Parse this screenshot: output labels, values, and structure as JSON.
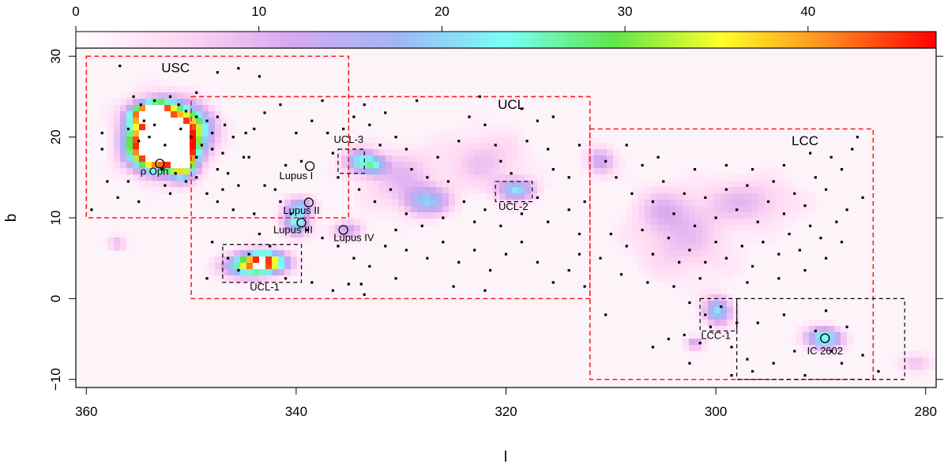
{
  "chart_data": {
    "type": "heatmap",
    "xlabel": "l",
    "ylabel": "b",
    "xlim": [
      361,
      279
    ],
    "ylim": [
      -11,
      31
    ],
    "xticks": [
      360,
      340,
      320,
      300,
      280
    ],
    "yticks": [
      -10,
      0,
      10,
      20,
      30
    ],
    "x_reversed": true,
    "grid": false,
    "colorbar": {
      "range": [
        0,
        47
      ],
      "ticks": [
        0,
        10,
        20,
        30,
        40
      ],
      "position": "top",
      "colormap": [
        "#ffffff",
        "#ffd6f3",
        "#d8a8f0",
        "#9fb6f6",
        "#78fff8",
        "#5ee64a",
        "#ffff2a",
        "#ff8a1e",
        "#ff0000"
      ]
    },
    "regions": [
      {
        "name": "USC",
        "l": [
          335,
          360
        ],
        "b": [
          10,
          30
        ],
        "style": "red-dashed",
        "label_at": [
          351.5,
          28
        ]
      },
      {
        "name": "UCL",
        "l": [
          312,
          350
        ],
        "b": [
          0,
          25
        ],
        "style": "red-dashed",
        "label_at": [
          319.5,
          23.5
        ]
      },
      {
        "name": "LCC",
        "l": [
          285,
          312
        ],
        "b": [
          -10,
          21
        ],
        "style": "red-dashed",
        "label_at": [
          291.5,
          19
        ]
      },
      {
        "name": "UCL-3",
        "l": [
          333.5,
          336
        ],
        "b": [
          15.5,
          18.5
        ],
        "style": "black-dashed",
        "label_at": [
          335,
          19.3
        ]
      },
      {
        "name": "UCL-2",
        "l": [
          317.5,
          321
        ],
        "b": [
          12,
          14.5
        ],
        "style": "black-dashed",
        "label_at": [
          319.3,
          11
        ]
      },
      {
        "name": "UCL-1",
        "l": [
          339.5,
          347
        ],
        "b": [
          2,
          6.7
        ],
        "style": "black-dashed",
        "label_at": [
          343,
          1
        ]
      },
      {
        "name": "LCC-1",
        "l": [
          298,
          301.5
        ],
        "b": [
          -4,
          0
        ],
        "style": "black-dashed",
        "label_at": [
          300,
          -5
        ]
      },
      {
        "name": "",
        "l": [
          282,
          298
        ],
        "b": [
          -10,
          0
        ],
        "style": "black-dashed",
        "label_at": null
      }
    ],
    "labeled_objects": [
      {
        "name": "ρ Oph",
        "l": 353,
        "b": 16.7,
        "label_at": [
          353.5,
          15.3
        ]
      },
      {
        "name": "Lupus I",
        "l": 338.7,
        "b": 16.4,
        "label_at": [
          340,
          14.8
        ]
      },
      {
        "name": "Lupus II",
        "l": 338.8,
        "b": 11.9,
        "label_at": [
          339.5,
          10.5
        ]
      },
      {
        "name": "Lupus III",
        "l": 339.5,
        "b": 9.4,
        "label_at": [
          340.3,
          8.1
        ]
      },
      {
        "name": "Lupus IV",
        "l": 335.5,
        "b": 8.5,
        "label_at": [
          334.5,
          7.1
        ]
      },
      {
        "name": "IC 2602",
        "l": 289.6,
        "b": -4.9,
        "label_at": [
          289.6,
          -6.9
        ]
      }
    ],
    "density_peaks": [
      {
        "l": 353.5,
        "b": 18.2,
        "level": 48,
        "sl": 1.6,
        "sb": 1.6
      },
      {
        "l": 351.5,
        "b": 19.5,
        "level": 30,
        "sl": 1.8,
        "sb": 2.5
      },
      {
        "l": 352.5,
        "b": 21.0,
        "level": 24,
        "sl": 2.2,
        "sb": 2.2
      },
      {
        "l": 354.5,
        "b": 22.8,
        "level": 34,
        "sl": 0.9,
        "sb": 0.8
      },
      {
        "l": 353.0,
        "b": 23.5,
        "level": 26,
        "sl": 1.0,
        "sb": 0.8
      },
      {
        "l": 350.0,
        "b": 21.5,
        "level": 14,
        "sl": 1.5,
        "sb": 1.5
      },
      {
        "l": 350.8,
        "b": 17.5,
        "level": 38,
        "sl": 0.8,
        "sb": 1.6
      },
      {
        "l": 355.0,
        "b": 20.5,
        "level": 14,
        "sl": 1.2,
        "sb": 2.0
      },
      {
        "l": 343.0,
        "b": 4.5,
        "level": 44,
        "sl": 1.4,
        "sb": 0.9
      },
      {
        "l": 345.0,
        "b": 4.0,
        "level": 20,
        "sl": 1.5,
        "sb": 1.0
      },
      {
        "l": 340.0,
        "b": 9.5,
        "level": 22,
        "sl": 0.9,
        "sb": 1.2
      },
      {
        "l": 339.5,
        "b": 11.5,
        "level": 12,
        "sl": 1.0,
        "sb": 0.8
      },
      {
        "l": 334.0,
        "b": 17.0,
        "level": 19,
        "sl": 1.0,
        "sb": 1.0
      },
      {
        "l": 332.5,
        "b": 16.5,
        "level": 15,
        "sl": 0.8,
        "sb": 0.8
      },
      {
        "l": 327.5,
        "b": 12.0,
        "level": 16,
        "sl": 1.5,
        "sb": 1.2
      },
      {
        "l": 319.0,
        "b": 13.5,
        "level": 19,
        "sl": 1.2,
        "sb": 0.9
      },
      {
        "l": 335.0,
        "b": 8.5,
        "level": 12,
        "sl": 1.0,
        "sb": 0.8
      },
      {
        "l": 330.0,
        "b": 15.0,
        "level": 8,
        "sl": 2.5,
        "sb": 2.5
      },
      {
        "l": 322.0,
        "b": 17.0,
        "level": 7,
        "sl": 2.5,
        "sb": 2.5
      },
      {
        "l": 311.0,
        "b": 17.0,
        "level": 12,
        "sl": 1.0,
        "sb": 1.2
      },
      {
        "l": 299.8,
        "b": -1.5,
        "level": 20,
        "sl": 0.9,
        "sb": 1.2
      },
      {
        "l": 289.6,
        "b": -4.9,
        "level": 24,
        "sl": 1.2,
        "sb": 0.9
      },
      {
        "l": 302.0,
        "b": -5.5,
        "level": 12,
        "sl": 0.6,
        "sb": 0.6
      },
      {
        "l": 303.0,
        "b": 7.0,
        "level": 7,
        "sl": 3.0,
        "sb": 3.0
      },
      {
        "l": 297.0,
        "b": 12.0,
        "level": 8,
        "sl": 3.0,
        "sb": 2.0
      },
      {
        "l": 305.0,
        "b": 11.0,
        "level": 7,
        "sl": 2.0,
        "sb": 2.0
      },
      {
        "l": 357.0,
        "b": 6.8,
        "level": 8,
        "sl": 0.6,
        "sb": 0.6
      },
      {
        "l": 281.0,
        "b": -8.0,
        "level": 6,
        "sl": 1.2,
        "sb": 0.8
      }
    ],
    "stars": [
      [
        356.8,
        28.8
      ],
      [
        355.5,
        25.0
      ],
      [
        354.8,
        24.0
      ],
      [
        353.5,
        24.5
      ],
      [
        352.0,
        25.0
      ],
      [
        351.2,
        24.0
      ],
      [
        350.5,
        23.2
      ],
      [
        349.5,
        22.5
      ],
      [
        348.5,
        22.0
      ],
      [
        347.5,
        22.5
      ],
      [
        346.8,
        21.5
      ],
      [
        350.0,
        20.0
      ],
      [
        349.0,
        19.0
      ],
      [
        348.0,
        18.5
      ],
      [
        347.5,
        16.0
      ],
      [
        346.5,
        15.5
      ],
      [
        349.5,
        15.0
      ],
      [
        350.5,
        14.5
      ],
      [
        352.5,
        14.0
      ],
      [
        356.0,
        14.5
      ],
      [
        358.0,
        14.5
      ],
      [
        358.5,
        20.5
      ],
      [
        358.5,
        18.5
      ],
      [
        359.5,
        11.0
      ],
      [
        357.0,
        12.5
      ],
      [
        355.0,
        12.0
      ],
      [
        352.0,
        13.0
      ],
      [
        346.0,
        11.0
      ],
      [
        345.5,
        14.0
      ],
      [
        344.5,
        17.5
      ],
      [
        344.0,
        21.0
      ],
      [
        343.0,
        23.0
      ],
      [
        343.5,
        27.5
      ],
      [
        345.5,
        28.5
      ],
      [
        347.5,
        28.0
      ],
      [
        349.5,
        25.5
      ],
      [
        351.0,
        21.0
      ],
      [
        352.5,
        19.0
      ],
      [
        354.0,
        20.0
      ],
      [
        355.0,
        19.5
      ],
      [
        356.0,
        21.0
      ],
      [
        353.5,
        21.5
      ],
      [
        352.8,
        16.0
      ],
      [
        351.5,
        15.5
      ],
      [
        348.5,
        13.0
      ],
      [
        347.5,
        12.0
      ],
      [
        345.0,
        17.5
      ],
      [
        344.8,
        20.5
      ],
      [
        346.0,
        20.0
      ],
      [
        347.0,
        18.0
      ],
      [
        348.0,
        20.5
      ],
      [
        349.5,
        17.5
      ],
      [
        354.5,
        22.0
      ],
      [
        341.5,
        24.0
      ],
      [
        340.0,
        20.5
      ],
      [
        339.5,
        17.0
      ],
      [
        341.0,
        16.5
      ],
      [
        338.5,
        22.0
      ],
      [
        337.0,
        20.5
      ],
      [
        336.5,
        18.0
      ],
      [
        335.5,
        21.0
      ],
      [
        334.5,
        22.5
      ],
      [
        333.0,
        21.5
      ],
      [
        332.0,
        19.0
      ],
      [
        331.5,
        23.0
      ],
      [
        330.5,
        20.0
      ],
      [
        329.5,
        18.5
      ],
      [
        329.0,
        16.0
      ],
      [
        327.5,
        15.0
      ],
      [
        326.5,
        17.5
      ],
      [
        325.5,
        14.5
      ],
      [
        324.5,
        19.5
      ],
      [
        323.5,
        22.5
      ],
      [
        322.0,
        21.5
      ],
      [
        321.0,
        19.0
      ],
      [
        320.5,
        17.0
      ],
      [
        319.5,
        15.5
      ],
      [
        318.0,
        19.5
      ],
      [
        317.0,
        22.0
      ],
      [
        316.0,
        18.5
      ],
      [
        315.5,
        16.0
      ],
      [
        314.0,
        15.0
      ],
      [
        313.0,
        19.0
      ],
      [
        315.5,
        22.5
      ],
      [
        318.5,
        23.5
      ],
      [
        322.5,
        25.0
      ],
      [
        328.5,
        24.5
      ],
      [
        333.5,
        24.0
      ],
      [
        337.5,
        24.5
      ],
      [
        336.0,
        15.0
      ],
      [
        334.0,
        13.5
      ],
      [
        332.5,
        12.0
      ],
      [
        331.0,
        13.5
      ],
      [
        329.5,
        10.5
      ],
      [
        328.0,
        9.0
      ],
      [
        326.0,
        10.0
      ],
      [
        324.0,
        12.0
      ],
      [
        323.0,
        9.5
      ],
      [
        322.0,
        11.0
      ],
      [
        320.5,
        9.0
      ],
      [
        318.5,
        10.5
      ],
      [
        317.0,
        12.5
      ],
      [
        316.0,
        9.5
      ],
      [
        314.0,
        11.0
      ],
      [
        313.0,
        8.0
      ],
      [
        312.5,
        12.0
      ],
      [
        342.0,
        13.5
      ],
      [
        341.5,
        12.0
      ],
      [
        340.5,
        10.5
      ],
      [
        339.0,
        8.5
      ],
      [
        337.5,
        7.5
      ],
      [
        336.0,
        6.5
      ],
      [
        334.5,
        5.0
      ],
      [
        333.0,
        4.0
      ],
      [
        331.5,
        6.5
      ],
      [
        330.5,
        8.5
      ],
      [
        329.5,
        6.0
      ],
      [
        327.5,
        5.0
      ],
      [
        326.0,
        7.0
      ],
      [
        324.5,
        4.5
      ],
      [
        323.0,
        6.0
      ],
      [
        321.5,
        3.5
      ],
      [
        320.0,
        5.5
      ],
      [
        318.5,
        7.0
      ],
      [
        317.0,
        4.5
      ],
      [
        315.5,
        2.0
      ],
      [
        314.0,
        3.5
      ],
      [
        313.0,
        5.5
      ],
      [
        333.5,
        0.5
      ],
      [
        333.8,
        1.8
      ],
      [
        336.5,
        1.0
      ],
      [
        338.5,
        2.0
      ],
      [
        341.0,
        2.5
      ],
      [
        345.5,
        3.5
      ],
      [
        346.5,
        5.0
      ],
      [
        344.5,
        5.5
      ],
      [
        342.5,
        6.5
      ],
      [
        348.0,
        7.0
      ],
      [
        348.5,
        2.5
      ],
      [
        343.5,
        8.0
      ],
      [
        344.0,
        10.5
      ],
      [
        343.0,
        14.0
      ],
      [
        347.0,
        13.5
      ],
      [
        310.5,
        17.0
      ],
      [
        309.5,
        15.0
      ],
      [
        308.0,
        13.0
      ],
      [
        307.0,
        16.5
      ],
      [
        306.0,
        12.0
      ],
      [
        305.0,
        14.5
      ],
      [
        304.0,
        10.5
      ],
      [
        303.0,
        13.0
      ],
      [
        302.0,
        9.0
      ],
      [
        301.0,
        12.5
      ],
      [
        300.0,
        10.0
      ],
      [
        299.0,
        13.5
      ],
      [
        298.0,
        11.0
      ],
      [
        297.0,
        14.0
      ],
      [
        296.0,
        9.5
      ],
      [
        295.0,
        12.0
      ],
      [
        294.5,
        14.5
      ],
      [
        293.5,
        10.5
      ],
      [
        292.5,
        13.0
      ],
      [
        291.5,
        11.5
      ],
      [
        290.5,
        15.0
      ],
      [
        289.5,
        13.5
      ],
      [
        288.0,
        16.0
      ],
      [
        287.0,
        18.5
      ],
      [
        286.5,
        20.0
      ],
      [
        289.0,
        17.5
      ],
      [
        291.0,
        18.0
      ],
      [
        293.5,
        16.5
      ],
      [
        296.5,
        16.0
      ],
      [
        299.0,
        16.5
      ],
      [
        302.0,
        16.0
      ],
      [
        305.5,
        17.5
      ],
      [
        308.5,
        19.0
      ],
      [
        310.0,
        8.0
      ],
      [
        308.5,
        6.5
      ],
      [
        307.0,
        8.5
      ],
      [
        306.0,
        5.5
      ],
      [
        304.5,
        7.5
      ],
      [
        303.5,
        4.5
      ],
      [
        302.5,
        6.0
      ],
      [
        301.0,
        4.5
      ],
      [
        300.0,
        7.0
      ],
      [
        299.0,
        5.0
      ],
      [
        297.5,
        6.5
      ],
      [
        296.5,
        4.0
      ],
      [
        295.5,
        7.0
      ],
      [
        294.0,
        5.5
      ],
      [
        293.0,
        8.0
      ],
      [
        292.0,
        6.0
      ],
      [
        291.0,
        9.0
      ],
      [
        290.0,
        7.5
      ],
      [
        288.5,
        9.5
      ],
      [
        287.5,
        11.0
      ],
      [
        286.0,
        12.5
      ],
      [
        288.0,
        7.0
      ],
      [
        289.5,
        5.0
      ],
      [
        291.5,
        3.5
      ],
      [
        294.0,
        2.5
      ],
      [
        297.0,
        2.0
      ],
      [
        301.5,
        2.5
      ],
      [
        304.0,
        1.5
      ],
      [
        306.5,
        2.0
      ],
      [
        309.0,
        3.0
      ],
      [
        311.0,
        5.0
      ],
      [
        302.5,
        -0.5
      ],
      [
        301.0,
        -2.0
      ],
      [
        299.5,
        -1.0
      ],
      [
        298.0,
        -3.0
      ],
      [
        300.5,
        -3.5
      ],
      [
        303.0,
        -4.5
      ],
      [
        304.5,
        -5.0
      ],
      [
        301.5,
        -5.5
      ],
      [
        298.5,
        -6.0
      ],
      [
        297.0,
        -7.5
      ],
      [
        296.5,
        -9.0
      ],
      [
        294.5,
        -8.0
      ],
      [
        292.5,
        -6.5
      ],
      [
        291.5,
        -9.5
      ],
      [
        290.5,
        -4.0
      ],
      [
        289.0,
        -6.5
      ],
      [
        288.0,
        -8.0
      ],
      [
        287.5,
        -3.5
      ],
      [
        286.0,
        -7.0
      ],
      [
        284.5,
        -9.0
      ],
      [
        289.5,
        -1.5
      ],
      [
        293.5,
        -2.0
      ],
      [
        296.0,
        -3.0
      ],
      [
        298.5,
        -9.5
      ],
      [
        302.5,
        -8.0
      ],
      [
        306.0,
        -6.0
      ],
      [
        310.5,
        -2.0
      ],
      [
        312.5,
        1.5
      ],
      [
        325.0,
        1.5
      ],
      [
        322.0,
        1.0
      ],
      [
        330.5,
        2.5
      ],
      [
        335.0,
        1.8
      ]
    ]
  }
}
